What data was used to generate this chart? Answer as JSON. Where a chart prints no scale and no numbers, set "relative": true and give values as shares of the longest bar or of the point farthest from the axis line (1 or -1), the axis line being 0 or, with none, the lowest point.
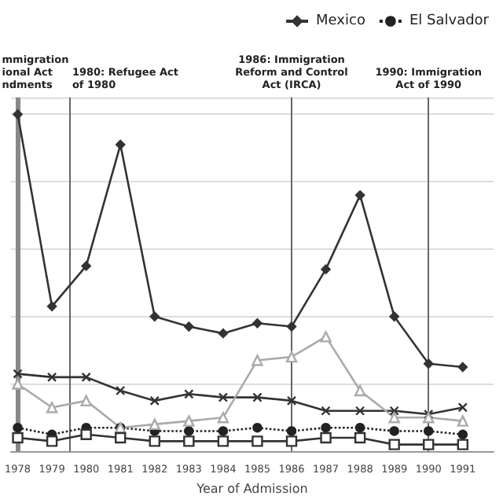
{
  "chart_data": {
    "type": "line",
    "relative": true,
    "xlabel": "Year of Admission",
    "x": [
      1978,
      1979,
      1980,
      1981,
      1982,
      1983,
      1984,
      1985,
      1986,
      1987,
      1988,
      1989,
      1990,
      1991
    ],
    "xlim": [
      1977.8,
      1991.9
    ],
    "xticks": [
      1978,
      1979,
      1980,
      1981,
      1982,
      1983,
      1984,
      1985,
      1986,
      1987,
      1988,
      1989,
      1990,
      1991
    ],
    "series": [
      {
        "name": "Mexico",
        "color": "#333333",
        "marker": "diamond",
        "line_style": "solid",
        "values": [
          1.0,
          0.43,
          0.55,
          0.91,
          0.4,
          0.37,
          0.35,
          0.38,
          0.37,
          0.54,
          0.76,
          0.4,
          0.26,
          0.25
        ]
      },
      {
        "name": "El Salvador",
        "color": "#222222",
        "marker": "circle",
        "line_style": "dotted",
        "values": [
          0.07,
          0.05,
          0.07,
          0.07,
          0.06,
          0.06,
          0.06,
          0.07,
          0.06,
          0.07,
          0.07,
          0.06,
          0.06,
          0.05
        ]
      },
      {
        "color": "#333333",
        "marker": "cross",
        "line_style": "solid",
        "values": [
          0.23,
          0.22,
          0.22,
          0.18,
          0.15,
          0.17,
          0.16,
          0.16,
          0.15,
          0.12,
          0.12,
          0.12,
          0.11,
          0.13
        ]
      },
      {
        "color": "#aaaaaa",
        "marker": "triangle",
        "line_style": "solid",
        "values": [
          0.2,
          0.13,
          0.15,
          0.07,
          0.08,
          0.09,
          0.1,
          0.27,
          0.28,
          0.34,
          0.18,
          0.1,
          0.1,
          0.09
        ]
      },
      {
        "color": "#333333",
        "marker": "square",
        "line_style": "solid",
        "values": [
          0.04,
          0.03,
          0.05,
          0.04,
          0.03,
          0.03,
          0.03,
          0.03,
          0.03,
          0.04,
          0.04,
          0.02,
          0.02,
          0.02
        ]
      }
    ],
    "ref_lines": [
      {
        "axis": "x",
        "value": 1978,
        "label": "mmigration\nional Act\nndments",
        "color": "#888888"
      },
      {
        "axis": "x",
        "value": 1979.5,
        "label": "1980: Refugee Act\nof 1980",
        "color": "#666666"
      },
      {
        "axis": "x",
        "value": 1986,
        "label": "1986: Immigration\nReform and Control\nAct (IRCA)",
        "color": "#666666"
      },
      {
        "axis": "x",
        "value": 1990,
        "label": "1990: Immigration\nAct of 1990",
        "color": "#666666"
      }
    ],
    "grid": "y",
    "legend": "top right"
  }
}
